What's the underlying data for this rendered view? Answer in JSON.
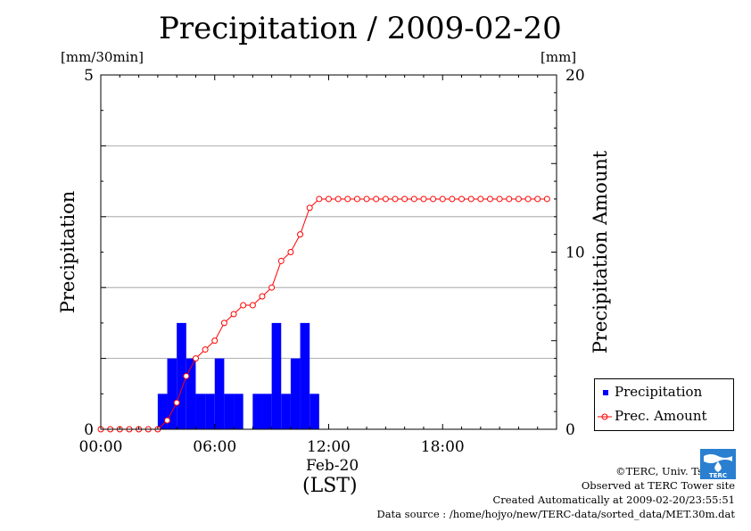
{
  "title": "Precipitation / 2009-02-20",
  "left_unit": "[mm/30min]",
  "right_unit": "[mm]",
  "x_date_label": "Feb-20",
  "x_unit_label": "(LST)",
  "credits": {
    "line1": "©TERC, Univ. Tsukuba",
    "line2": "Observed at TERC Tower site",
    "line3": "Created Automatically at 2009-02-20/23:55:51",
    "line4": "Data source : /home/hojyo/new/TERC-data/sorted_data/MET.30m.dat"
  },
  "logo_text": "TERC",
  "colors": {
    "bar": "#0000ff",
    "line": "#ff0000",
    "grid": "#999999",
    "axis": "#000000"
  },
  "chart_data": {
    "type": "bar",
    "ylabel": "Precipitation",
    "y2label": "Precipitation Amount",
    "ylim": [
      0,
      5
    ],
    "y2lim": [
      0,
      20
    ],
    "yticks": [
      "0",
      "5"
    ],
    "y2ticks": [
      "0",
      "10",
      "20"
    ],
    "xticks": [
      "00:00",
      "06:00",
      "12:00",
      "18:00"
    ],
    "xtick_hours": [
      0,
      6,
      12,
      18
    ],
    "xlim_hours": [
      0,
      24
    ],
    "grid": true,
    "legend_position": "bottom-right",
    "x_hours": [
      0,
      0.5,
      1,
      1.5,
      2,
      2.5,
      3,
      3.5,
      4,
      4.5,
      5,
      5.5,
      6,
      6.5,
      7,
      7.5,
      8,
      8.5,
      9,
      9.5,
      10,
      10.5,
      11,
      11.5,
      12,
      12.5,
      13,
      13.5,
      14,
      14.5,
      15,
      15.5,
      16,
      16.5,
      17,
      17.5,
      18,
      18.5,
      19,
      19.5,
      20,
      20.5,
      21,
      21.5,
      22,
      22.5,
      23,
      23.5
    ],
    "series": [
      {
        "name": "Precipitation",
        "kind": "bar",
        "axis": "left",
        "values": [
          0,
          0,
          0,
          0,
          0,
          0,
          0.5,
          1.0,
          1.5,
          1.0,
          0.5,
          0.5,
          1.0,
          0.5,
          0.5,
          0,
          0.5,
          0.5,
          1.5,
          0.5,
          1.0,
          1.5,
          0.5,
          0,
          0,
          0,
          0,
          0,
          0,
          0,
          0,
          0,
          0,
          0,
          0,
          0,
          0,
          0,
          0,
          0,
          0,
          0,
          0,
          0,
          0,
          0,
          0,
          0
        ]
      },
      {
        "name": "Prec. Amount",
        "kind": "line",
        "axis": "right",
        "values": [
          0,
          0,
          0,
          0,
          0,
          0,
          0,
          0.5,
          1.5,
          3.0,
          4.0,
          4.5,
          5.0,
          6.0,
          6.5,
          7.0,
          7.0,
          7.5,
          8.0,
          9.5,
          10.0,
          11.0,
          12.5,
          13.0,
          13.0,
          13.0,
          13.0,
          13.0,
          13.0,
          13.0,
          13.0,
          13.0,
          13.0,
          13.0,
          13.0,
          13.0,
          13.0,
          13.0,
          13.0,
          13.0,
          13.0,
          13.0,
          13.0,
          13.0,
          13.0,
          13.0,
          13.0,
          13.0
        ]
      }
    ]
  }
}
